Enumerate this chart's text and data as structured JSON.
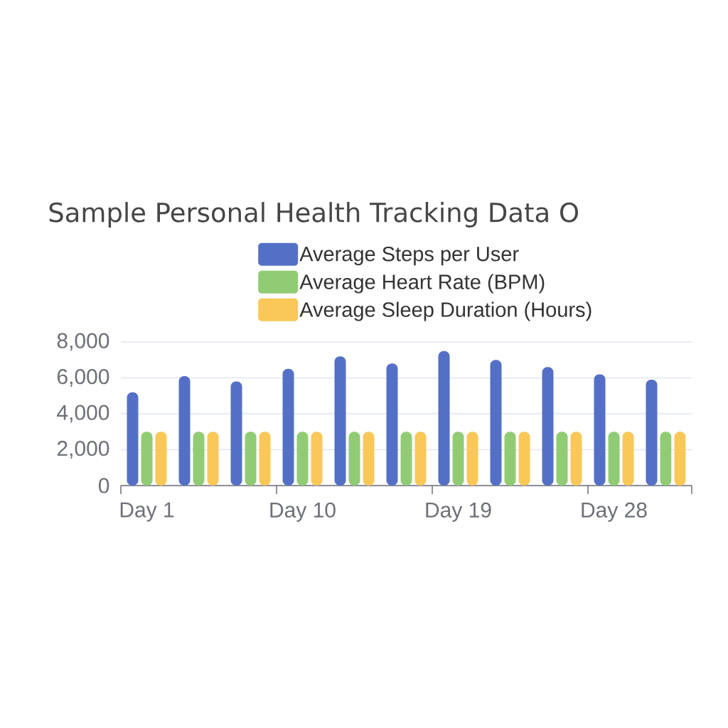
{
  "chart_data": {
    "type": "bar",
    "title": "Sample Personal Health Tracking Data O",
    "categories": [
      "Day 1",
      null,
      null,
      "Day 10",
      null,
      null,
      "Day 19",
      null,
      null,
      "Day 28",
      null
    ],
    "series": [
      {
        "name": "Average Steps per User",
        "color": "#5470c6",
        "values": [
          5200,
          6100,
          5800,
          6500,
          7200,
          6800,
          7500,
          7000,
          6600,
          6200,
          5900
        ]
      },
      {
        "name": "Average Heart Rate (BPM)",
        "color": "#91cc75",
        "values": [
          3000,
          3000,
          3000,
          3000,
          3000,
          3000,
          3000,
          3000,
          3000,
          3000,
          3000
        ]
      },
      {
        "name": "Average Sleep Duration (Hours)",
        "color": "#fac858",
        "values": [
          3000,
          3000,
          3000,
          3000,
          3000,
          3000,
          3000,
          3000,
          3000,
          3000,
          3000
        ]
      }
    ],
    "ylim": [
      0,
      8000
    ],
    "yticks": [
      0,
      {
        "value": 2000,
        "label": "2,000"
      },
      {
        "value": 4000,
        "label": "4,000"
      },
      {
        "value": 6000,
        "label": "6,000"
      },
      {
        "value": 8000,
        "label": "8,000"
      }
    ],
    "grid": "y",
    "legend": "top"
  }
}
